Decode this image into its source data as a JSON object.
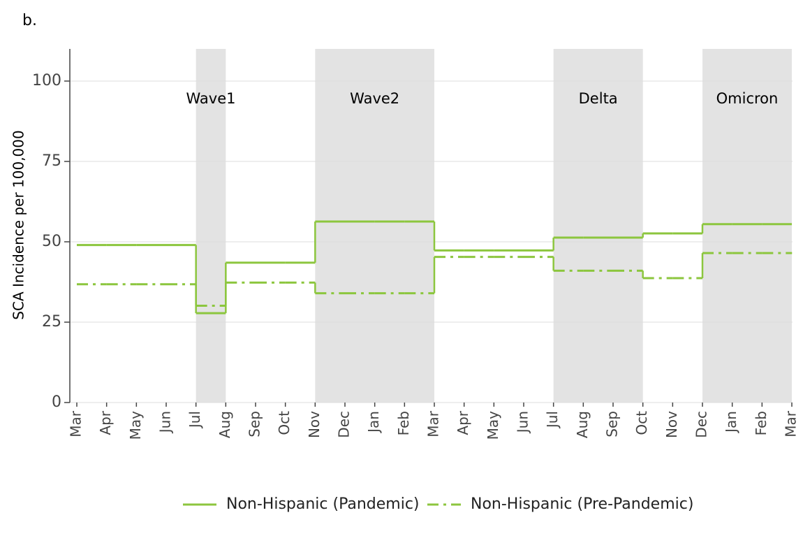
{
  "panel_label": "b.",
  "chart_data": {
    "type": "step",
    "y_label": "SCA Incidence per 100,000",
    "categories": [
      "Mar",
      "Apr",
      "May",
      "Jun",
      "Jul",
      "Aug",
      "Sep",
      "Oct",
      "Nov",
      "Dec",
      "Jan",
      "Feb",
      "Mar",
      "Apr",
      "May",
      "Jun",
      "Jul",
      "Aug",
      "Sep",
      "Oct",
      "Nov",
      "Dec",
      "Jan",
      "Feb",
      "Mar"
    ],
    "series": [
      {
        "name": "Non-Hispanic (Pandemic)",
        "color": "#8cc63e",
        "dash": "solid",
        "values": [
          49,
          49,
          49,
          49,
          27.8,
          43.5,
          43.5,
          43.5,
          56.3,
          56.3,
          56.3,
          56.3,
          47.3,
          47.3,
          47.3,
          47.3,
          51.3,
          51.3,
          51.3,
          52.6,
          52.6,
          55.5,
          55.5,
          55.5,
          55.5
        ]
      },
      {
        "name": "Non-Hispanic (Pre-Pandemic)",
        "color": "#8cc63e",
        "dash": "dashdot",
        "values": [
          36.8,
          36.8,
          36.8,
          36.8,
          30.1,
          37.3,
          37.3,
          37.3,
          34,
          34,
          34,
          34,
          45.3,
          45.3,
          45.3,
          45.3,
          41,
          41,
          41,
          38.7,
          38.7,
          46.5,
          46.5,
          46.5,
          46.5
        ]
      }
    ],
    "bands": [
      {
        "label": "Wave1",
        "start": 4,
        "end": 5
      },
      {
        "label": "Wave2",
        "start": 8,
        "end": 12
      },
      {
        "label": "Delta",
        "start": 16,
        "end": 19
      },
      {
        "label": "Omicron",
        "start": 21,
        "end": 24
      }
    ],
    "band_color": "#e3e3e3",
    "ylim": [
      0,
      110
    ],
    "yticks": [
      0,
      25,
      50,
      75,
      100
    ],
    "grid": true,
    "legend": "bottom"
  }
}
